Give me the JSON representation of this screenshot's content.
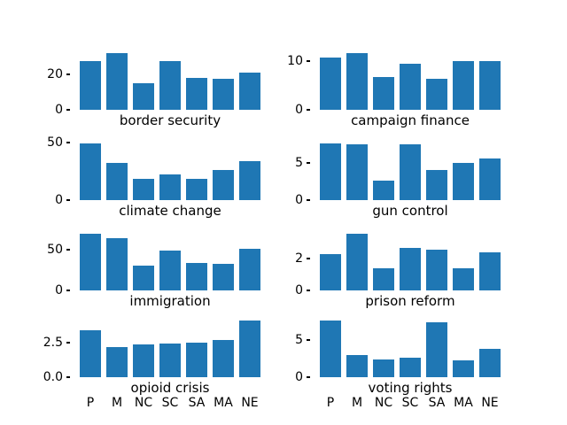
{
  "figure": {
    "background": "#ffffff",
    "bar_color": "#1f77b4",
    "text_color": "#000000"
  },
  "chart_data": [
    {
      "type": "bar",
      "title": "border security",
      "categories": [
        "P",
        "M",
        "NC",
        "SC",
        "SA",
        "MA",
        "NE"
      ],
      "values": [
        27.5,
        31.7,
        14.7,
        27.2,
        18.0,
        17.5,
        21.0
      ],
      "ylim": [
        0,
        33.3
      ],
      "yticks": [
        {
          "value": 0,
          "label": "0"
        },
        {
          "value": 20,
          "label": "20"
        }
      ],
      "grid": false,
      "x_tick_labels_visible": false
    },
    {
      "type": "bar",
      "title": "campaign finance",
      "categories": [
        "P",
        "M",
        "NC",
        "SC",
        "SA",
        "MA",
        "NE"
      ],
      "values": [
        10.6,
        11.5,
        6.7,
        9.4,
        6.4,
        10.0,
        9.9
      ],
      "ylim": [
        0,
        12.1
      ],
      "yticks": [
        {
          "value": 0,
          "label": "0"
        },
        {
          "value": 10,
          "label": "10"
        }
      ],
      "grid": false,
      "x_tick_labels_visible": false
    },
    {
      "type": "bar",
      "title": "climate change",
      "categories": [
        "P",
        "M",
        "NC",
        "SC",
        "SA",
        "MA",
        "NE"
      ],
      "values": [
        48.7,
        32.0,
        18.2,
        22.5,
        18.7,
        26.2,
        33.7
      ],
      "ylim": [
        0,
        51.2
      ],
      "yticks": [
        {
          "value": 0,
          "label": "0"
        },
        {
          "value": 50,
          "label": "50"
        }
      ],
      "grid": false,
      "x_tick_labels_visible": false
    },
    {
      "type": "bar",
      "title": "gun control",
      "categories": [
        "P",
        "M",
        "NC",
        "SC",
        "SA",
        "MA",
        "NE"
      ],
      "values": [
        7.5,
        7.45,
        2.6,
        7.4,
        4.0,
        5.0,
        5.6
      ],
      "ylim": [
        0,
        7.9
      ],
      "yticks": [
        {
          "value": 0,
          "label": "0"
        },
        {
          "value": 5,
          "label": "5"
        }
      ],
      "grid": false,
      "x_tick_labels_visible": false
    },
    {
      "type": "bar",
      "title": "immigration",
      "categories": [
        "P",
        "M",
        "NC",
        "SC",
        "SA",
        "MA",
        "NE"
      ],
      "values": [
        70.0,
        64.3,
        30.7,
        49.6,
        33.9,
        32.8,
        52.1
      ],
      "ylim": [
        0,
        73.5
      ],
      "yticks": [
        {
          "value": 0,
          "label": "0"
        },
        {
          "value": 50,
          "label": "50"
        }
      ],
      "grid": false,
      "x_tick_labels_visible": false
    },
    {
      "type": "bar",
      "title": "prison reform",
      "categories": [
        "P",
        "M",
        "NC",
        "SC",
        "SA",
        "MA",
        "NE"
      ],
      "values": [
        2.3,
        3.55,
        1.4,
        2.65,
        2.55,
        1.4,
        2.4
      ],
      "ylim": [
        0,
        3.73
      ],
      "yticks": [
        {
          "value": 0,
          "label": "0"
        },
        {
          "value": 2,
          "label": "2"
        }
      ],
      "grid": false,
      "x_tick_labels_visible": false
    },
    {
      "type": "bar",
      "title": "opioid crisis",
      "categories": [
        "P",
        "M",
        "NC",
        "SC",
        "SA",
        "MA",
        "NE"
      ],
      "values": [
        3.38,
        2.18,
        2.4,
        2.44,
        2.48,
        2.7,
        4.1
      ],
      "ylim": [
        0,
        4.3
      ],
      "yticks": [
        {
          "value": 0,
          "label": "0.0"
        },
        {
          "value": 2.5,
          "label": "2.5"
        }
      ],
      "grid": false,
      "x_tick_labels_visible": true
    },
    {
      "type": "bar",
      "title": "voting rights",
      "categories": [
        "P",
        "M",
        "NC",
        "SC",
        "SA",
        "MA",
        "NE"
      ],
      "values": [
        7.5,
        2.9,
        2.4,
        2.6,
        7.3,
        2.2,
        3.8
      ],
      "ylim": [
        0,
        7.9
      ],
      "yticks": [
        {
          "value": 0,
          "label": "0"
        },
        {
          "value": 5,
          "label": "5"
        }
      ],
      "grid": false,
      "x_tick_labels_visible": true
    }
  ]
}
